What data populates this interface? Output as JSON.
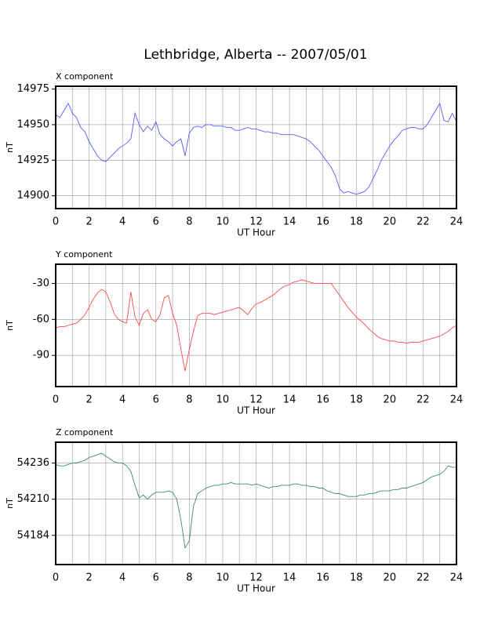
{
  "chart_data": [
    {
      "type": "line",
      "title": "Lethbridge, Alberta -- 2007/05/01",
      "subtitle": "X component",
      "xlabel": "UT Hour",
      "ylabel": "nT",
      "color": "#5a5aff",
      "grid": true,
      "xlim": [
        0,
        24
      ],
      "xticks": [
        0,
        2,
        4,
        6,
        8,
        10,
        12,
        14,
        16,
        18,
        20,
        22,
        24
      ],
      "ylim": [
        14891,
        14977
      ],
      "yticks": [
        14900,
        14925,
        14950,
        14975
      ],
      "x": [
        0,
        0.25,
        0.5,
        0.75,
        1,
        1.25,
        1.5,
        1.75,
        2,
        2.25,
        2.5,
        2.75,
        3,
        3.25,
        3.5,
        3.75,
        4,
        4.25,
        4.5,
        4.75,
        5,
        5.25,
        5.5,
        5.75,
        6,
        6.25,
        6.5,
        6.75,
        7,
        7.25,
        7.5,
        7.75,
        8,
        8.25,
        8.5,
        8.75,
        9,
        9.25,
        9.5,
        9.75,
        10,
        10.25,
        10.5,
        10.75,
        11,
        11.25,
        11.5,
        11.75,
        12,
        12.25,
        12.5,
        12.75,
        13,
        13.25,
        13.5,
        13.75,
        14,
        14.25,
        14.5,
        14.75,
        15,
        15.25,
        15.5,
        15.75,
        16,
        16.25,
        16.5,
        16.75,
        17,
        17.25,
        17.5,
        17.75,
        18,
        18.25,
        18.5,
        18.75,
        19,
        19.25,
        19.5,
        19.75,
        20,
        20.25,
        20.5,
        20.75,
        21,
        21.25,
        21.5,
        21.75,
        22,
        22.25,
        22.5,
        22.75,
        23,
        23.25,
        23.5,
        23.75,
        24
      ],
      "values": [
        14957,
        14955,
        14960,
        14965,
        14958,
        14955,
        14948,
        14945,
        14938,
        14933,
        14928,
        14925,
        14924,
        14927,
        14930,
        14933,
        14935,
        14937,
        14940,
        14958,
        14950,
        14945,
        14949,
        14946,
        14952,
        14943,
        14940,
        14938,
        14935,
        14938,
        14940,
        14928,
        14944,
        14948,
        14949,
        14948,
        14950,
        14950,
        14949,
        14949,
        14949,
        14948,
        14948,
        14946,
        14946,
        14947,
        14948,
        14947,
        14947,
        14946,
        14945,
        14945,
        14944,
        14944,
        14943,
        14943,
        14943,
        14943,
        14942,
        14941,
        14940,
        14938,
        14935,
        14932,
        14928,
        14924,
        14920,
        14914,
        14905,
        14902,
        14903,
        14902,
        14901,
        14902,
        14903,
        14906,
        14912,
        14918,
        14925,
        14930,
        14935,
        14939,
        14942,
        14946,
        14947,
        14948,
        14948,
        14947,
        14947,
        14950,
        14955,
        14960,
        14965,
        14953,
        14952,
        14958,
        14952
      ]
    },
    {
      "type": "line",
      "subtitle": "Y component",
      "xlabel": "UT Hour",
      "ylabel": "nT",
      "color": "#ff4a4a",
      "grid": true,
      "xlim": [
        0,
        24
      ],
      "xticks": [
        0,
        2,
        4,
        6,
        8,
        10,
        12,
        14,
        16,
        18,
        20,
        22,
        24
      ],
      "ylim": [
        -116,
        -14
      ],
      "yticks": [
        -90,
        -60,
        -30
      ],
      "x": [
        0,
        0.25,
        0.5,
        0.75,
        1,
        1.25,
        1.5,
        1.75,
        2,
        2.25,
        2.5,
        2.75,
        3,
        3.25,
        3.5,
        3.75,
        4,
        4.25,
        4.5,
        4.75,
        5,
        5.25,
        5.5,
        5.75,
        6,
        6.25,
        6.5,
        6.75,
        7,
        7.25,
        7.5,
        7.75,
        8,
        8.25,
        8.5,
        8.75,
        9,
        9.25,
        9.5,
        9.75,
        10,
        10.25,
        10.5,
        10.75,
        11,
        11.25,
        11.5,
        11.75,
        12,
        12.25,
        12.5,
        12.75,
        13,
        13.25,
        13.5,
        13.75,
        14,
        14.25,
        14.5,
        14.75,
        15,
        15.25,
        15.5,
        15.75,
        16,
        16.25,
        16.5,
        16.75,
        17,
        17.25,
        17.5,
        17.75,
        18,
        18.25,
        18.5,
        18.75,
        19,
        19.25,
        19.5,
        19.75,
        20,
        20.25,
        20.5,
        20.75,
        21,
        21.25,
        21.5,
        21.75,
        22,
        22.25,
        22.5,
        22.75,
        23,
        23.25,
        23.5,
        23.75,
        24
      ],
      "values": [
        -67,
        -66,
        -66,
        -65,
        -64,
        -63,
        -60,
        -56,
        -50,
        -43,
        -38,
        -35,
        -37,
        -45,
        -55,
        -60,
        -62,
        -63,
        -37,
        -58,
        -65,
        -55,
        -52,
        -60,
        -62,
        -56,
        -42,
        -40,
        -55,
        -65,
        -85,
        -103,
        -85,
        -70,
        -57,
        -55,
        -55,
        -55,
        -56,
        -55,
        -54,
        -53,
        -52,
        -51,
        -50,
        -53,
        -56,
        -51,
        -47,
        -46,
        -44,
        -42,
        -40,
        -37,
        -34,
        -32,
        -31,
        -29,
        -28,
        -27,
        -28,
        -29,
        -30,
        -30,
        -30,
        -30,
        -30,
        -35,
        -40,
        -45,
        -50,
        -54,
        -58,
        -61,
        -64,
        -68,
        -71,
        -74,
        -76,
        -77,
        -78,
        -78,
        -79,
        -79,
        -80,
        -79,
        -79,
        -79,
        -78,
        -77,
        -76,
        -75,
        -74,
        -72,
        -70,
        -67,
        -65
      ]
    },
    {
      "type": "line",
      "subtitle": "Z component",
      "xlabel": "UT Hour",
      "ylabel": "nT",
      "color": "#3d8a6c",
      "grid": true,
      "xlim": [
        0,
        24
      ],
      "xticks": [
        0,
        2,
        4,
        6,
        8,
        10,
        12,
        14,
        16,
        18,
        20,
        22,
        24
      ],
      "ylim": [
        54163,
        54251
      ],
      "yticks": [
        54184,
        54210,
        54236
      ],
      "x": [
        0,
        0.25,
        0.5,
        0.75,
        1,
        1.25,
        1.5,
        1.75,
        2,
        2.25,
        2.5,
        2.75,
        3,
        3.25,
        3.5,
        3.75,
        4,
        4.25,
        4.5,
        4.75,
        5,
        5.25,
        5.5,
        5.75,
        6,
        6.25,
        6.5,
        6.75,
        7,
        7.25,
        7.5,
        7.75,
        8,
        8.25,
        8.5,
        8.75,
        9,
        9.25,
        9.5,
        9.75,
        10,
        10.25,
        10.5,
        10.75,
        11,
        11.25,
        11.5,
        11.75,
        12,
        12.25,
        12.5,
        12.75,
        13,
        13.25,
        13.5,
        13.75,
        14,
        14.25,
        14.5,
        14.75,
        15,
        15.25,
        15.5,
        15.75,
        16,
        16.25,
        16.5,
        16.75,
        17,
        17.25,
        17.5,
        17.75,
        18,
        18.25,
        18.5,
        18.75,
        19,
        19.25,
        19.5,
        19.75,
        20,
        20.25,
        20.5,
        20.75,
        21,
        21.25,
        21.5,
        21.75,
        22,
        22.25,
        22.5,
        22.75,
        23,
        23.25,
        23.5,
        23.75,
        24
      ],
      "values": [
        54235,
        54234,
        54234,
        54235,
        54236,
        54236,
        54237,
        54238,
        54240,
        54241,
        54242,
        54243,
        54241,
        54239,
        54237,
        54236,
        54236,
        54234,
        54230,
        54220,
        54211,
        54213,
        54210,
        54213,
        54215,
        54215,
        54215,
        54216,
        54215,
        54210,
        54195,
        54175,
        54180,
        54205,
        54214,
        54216,
        54218,
        54219,
        54220,
        54220,
        54221,
        54221,
        54222,
        54221,
        54221,
        54221,
        54221,
        54220,
        54221,
        54220,
        54219,
        54218,
        54219,
        54219,
        54220,
        54220,
        54220,
        54221,
        54221,
        54220,
        54220,
        54219,
        54219,
        54218,
        54218,
        54216,
        54215,
        54214,
        54214,
        54213,
        54212,
        54212,
        54212,
        54213,
        54213,
        54214,
        54214,
        54215,
        54216,
        54216,
        54216,
        54217,
        54217,
        54218,
        54218,
        54219,
        54220,
        54221,
        54222,
        54224,
        54226,
        54227,
        54228,
        54230,
        54234,
        54233,
        54233
      ]
    }
  ]
}
